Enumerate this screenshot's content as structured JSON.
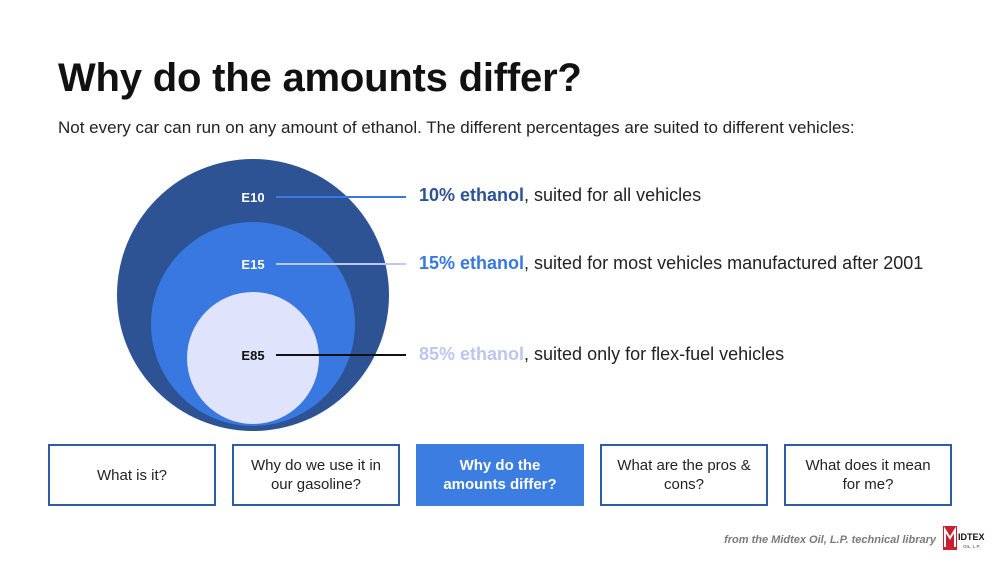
{
  "title": "Why do the amounts differ?",
  "subtitle": "Not every car can run on any amount of ethanol. The different percentages are suited to different vehicles:",
  "blends": [
    {
      "label": "E10",
      "highlight": "10% ethanol",
      "rest": ", suited for all vehicles",
      "color": "#2d5394"
    },
    {
      "label": "E15",
      "highlight": "15% ethanol",
      "rest": ", suited for most vehicles manufactured after 2001",
      "color": "#3878e0"
    },
    {
      "label": "E85",
      "highlight": "85% ethanol",
      "rest": ", suited only for flex-fuel vehicles",
      "color": "#bcc6ef"
    }
  ],
  "nav": [
    {
      "label": "What is it?",
      "active": false
    },
    {
      "label": "Why do we use it in our gasoline?",
      "active": false
    },
    {
      "label": "Why do the amounts differ?",
      "active": true
    },
    {
      "label": "What are the pros & cons?",
      "active": false
    },
    {
      "label": "What does it mean for me?",
      "active": false
    }
  ],
  "footer": "from the Midtex Oil, L.P. technical library",
  "logo": {
    "text": "IDTEX",
    "subtext": "OIL, L.P.",
    "color": "#c8202f"
  }
}
